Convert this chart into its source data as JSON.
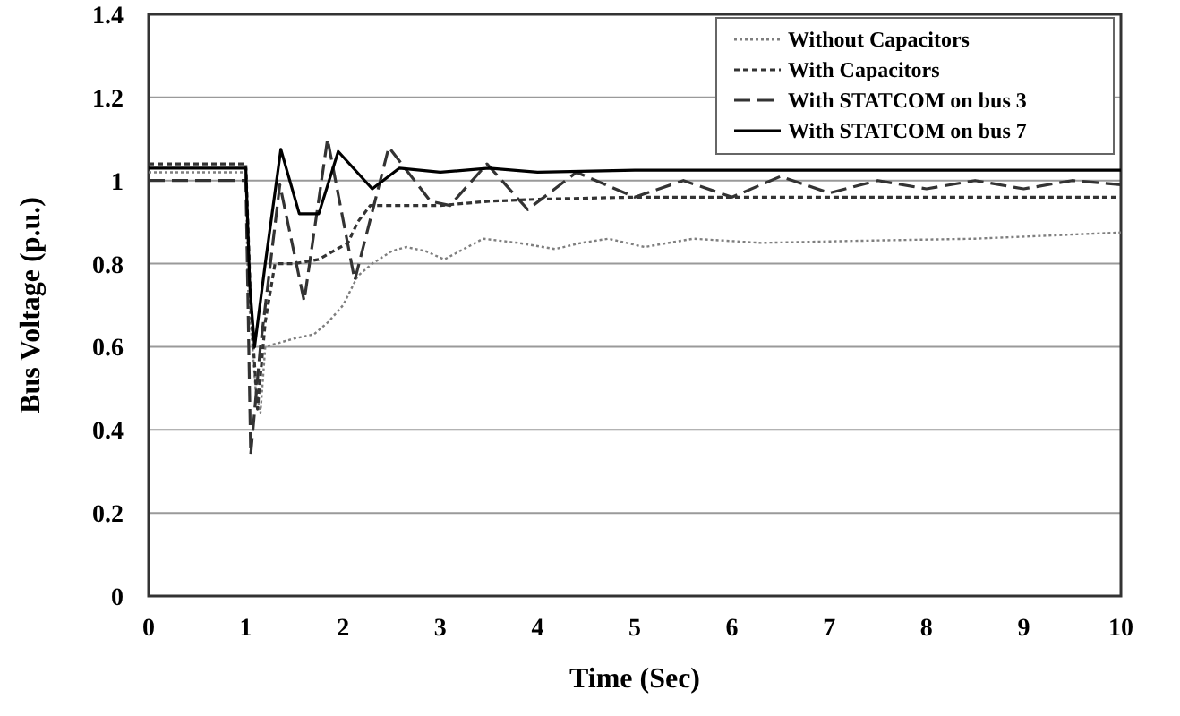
{
  "chart_data": {
    "type": "line",
    "xlabel": "Time (Sec)",
    "ylabel": "Bus Voltage (p.u.)",
    "xlim": [
      0,
      10
    ],
    "ylim": [
      0,
      1.4
    ],
    "xticks": [
      0,
      1,
      2,
      3,
      4,
      5,
      6,
      7,
      8,
      9,
      10
    ],
    "yticks": [
      0,
      0.2,
      0.4,
      0.6,
      0.8,
      1,
      1.2,
      1.4
    ],
    "grid": "y",
    "legend": "top right",
    "series": [
      {
        "name": "Without Capacitors",
        "color": "#7f7f7f",
        "line_style": "dotted",
        "x": [
          0,
          1.0,
          1.02,
          1.1,
          1.15,
          1.2,
          1.35,
          1.5,
          1.7,
          1.85,
          2.0,
          2.15,
          2.3,
          2.5,
          2.65,
          2.85,
          3.04,
          3.2,
          3.44,
          3.8,
          4.18,
          4.45,
          4.73,
          5.1,
          5.6,
          6.3,
          7.3,
          8.5,
          10
        ],
        "values": [
          1.02,
          1.02,
          0.75,
          0.5,
          0.44,
          0.6,
          0.61,
          0.62,
          0.63,
          0.66,
          0.7,
          0.77,
          0.8,
          0.83,
          0.84,
          0.83,
          0.81,
          0.83,
          0.86,
          0.85,
          0.835,
          0.85,
          0.86,
          0.84,
          0.86,
          0.85,
          0.855,
          0.86,
          0.875
        ]
      },
      {
        "name": "With Capacitors",
        "color": "#333333",
        "line_style": "dashed",
        "x": [
          0,
          1.0,
          1.05,
          1.12,
          1.2,
          1.3,
          1.5,
          1.75,
          1.9,
          2.05,
          2.15,
          2.28,
          2.6,
          3.0,
          3.5,
          4.0,
          5.0,
          6.0,
          8.0,
          10
        ],
        "values": [
          1.04,
          1.04,
          0.7,
          0.45,
          0.66,
          0.8,
          0.8,
          0.81,
          0.83,
          0.85,
          0.9,
          0.94,
          0.94,
          0.94,
          0.95,
          0.955,
          0.96,
          0.96,
          0.96,
          0.96
        ]
      },
      {
        "name": "With STATCOM  on bus 3",
        "color": "#333333",
        "line_style": "dashed",
        "x": [
          0,
          1.0,
          1.05,
          1.15,
          1.35,
          1.6,
          1.84,
          2.12,
          2.47,
          2.9,
          3.1,
          3.48,
          3.9,
          4.4,
          5.0,
          5.5,
          6.0,
          6.5,
          7.0,
          7.5,
          8.0,
          8.5,
          9.0,
          9.5,
          10
        ],
        "values": [
          1.0,
          1.0,
          0.34,
          0.6,
          0.99,
          0.71,
          1.1,
          0.76,
          1.08,
          0.95,
          0.94,
          1.04,
          0.93,
          1.02,
          0.96,
          1.0,
          0.96,
          1.01,
          0.97,
          1.0,
          0.98,
          1.0,
          0.98,
          1.0,
          0.99
        ]
      },
      {
        "name": "With STATCOM on bus 7",
        "color": "#000000",
        "line_style": "solid",
        "x": [
          0,
          1.0,
          1.04,
          1.09,
          1.2,
          1.36,
          1.55,
          1.75,
          1.95,
          2.3,
          2.58,
          3.0,
          3.5,
          4.0,
          5.0,
          6.0,
          8.0,
          10
        ],
        "values": [
          1.03,
          1.03,
          0.75,
          0.6,
          0.8,
          1.075,
          0.92,
          0.92,
          1.07,
          0.98,
          1.03,
          1.02,
          1.03,
          1.02,
          1.025,
          1.025,
          1.025,
          1.025
        ]
      }
    ]
  }
}
